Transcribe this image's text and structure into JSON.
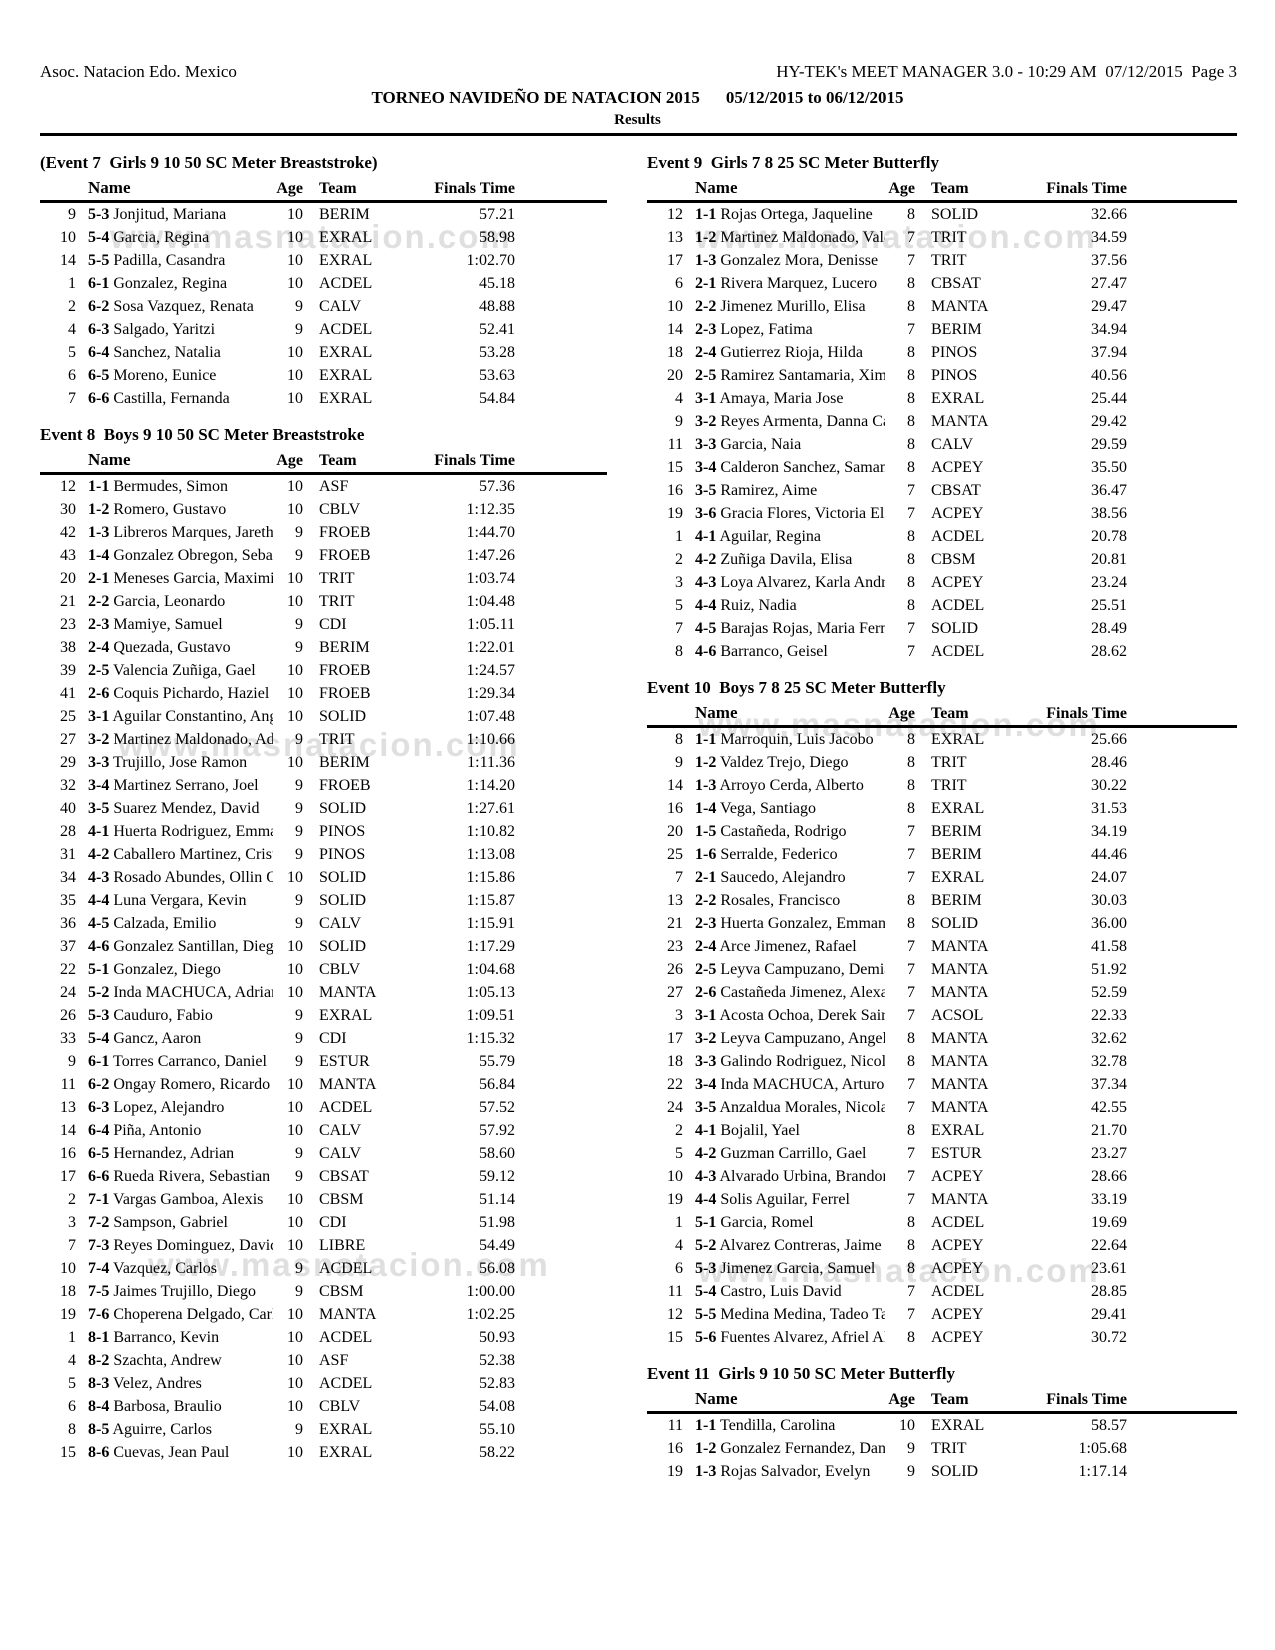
{
  "page_header": {
    "organization": "Asoc. Natacion Edo. Mexico",
    "program_info": "HY-TEK's MEET MANAGER 3.0 - 10:29 AM  07/12/2015  Page 3",
    "meet_title": "TORNEO NAVIDEÑO DE NATACION 2015",
    "meet_dates": "05/12/2015 to 06/12/2015",
    "results_label": "Results"
  },
  "column_headers": {
    "name": "Name",
    "age": "Age",
    "team": "Team",
    "finals_time": "Finals Time"
  },
  "watermark": {
    "text": "www.masnatacion.com"
  },
  "row_fields": [
    "place",
    "heat_lane",
    "name",
    "age",
    "team",
    "finals_time"
  ],
  "events": [
    {
      "id": "event-7",
      "title": "(Event 7  Girls 9 10 50 SC Meter Breaststroke)",
      "column": "left",
      "rows": [
        [
          "9",
          "5-3",
          "Jonjitud, Mariana",
          "10",
          "BERIM",
          "57.21"
        ],
        [
          "10",
          "5-4",
          "Garcia, Regina",
          "10",
          "EXRAL",
          "58.98"
        ],
        [
          "14",
          "5-5",
          "Padilla, Casandra",
          "10",
          "EXRAL",
          "1:02.70"
        ],
        [
          "1",
          "6-1",
          "Gonzalez, Regina",
          "10",
          "ACDEL",
          "45.18"
        ],
        [
          "2",
          "6-2",
          "Sosa Vazquez, Renata",
          "9",
          "CALV",
          "48.88"
        ],
        [
          "4",
          "6-3",
          "Salgado, Yaritzi",
          "9",
          "ACDEL",
          "52.41"
        ],
        [
          "5",
          "6-4",
          "Sanchez, Natalia",
          "10",
          "EXRAL",
          "53.28"
        ],
        [
          "6",
          "6-5",
          "Moreno, Eunice",
          "10",
          "EXRAL",
          "53.63"
        ],
        [
          "7",
          "6-6",
          "Castilla, Fernanda",
          "10",
          "EXRAL",
          "54.84"
        ]
      ]
    },
    {
      "id": "event-8",
      "title": "Event 8  Boys 9 10 50 SC Meter Breaststroke",
      "column": "left",
      "rows": [
        [
          "12",
          "1-1",
          "Bermudes, Simon",
          "10",
          "ASF",
          "57.36"
        ],
        [
          "30",
          "1-2",
          "Romero, Gustavo",
          "10",
          "CBLV",
          "1:12.35"
        ],
        [
          "42",
          "1-3",
          "Libreros Marques, Jareth",
          "9",
          "FROEB",
          "1:44.70"
        ],
        [
          "43",
          "1-4",
          "Gonzalez Obregon, Sebast",
          "9",
          "FROEB",
          "1:47.26"
        ],
        [
          "20",
          "2-1",
          "Meneses Garcia, Maximili",
          "10",
          "TRIT",
          "1:03.74"
        ],
        [
          "21",
          "2-2",
          "Garcia, Leonardo",
          "10",
          "TRIT",
          "1:04.48"
        ],
        [
          "23",
          "2-3",
          "Mamiye, Samuel",
          "9",
          "CDI",
          "1:05.11"
        ],
        [
          "38",
          "2-4",
          "Quezada, Gustavo",
          "9",
          "BERIM",
          "1:22.01"
        ],
        [
          "39",
          "2-5",
          "Valencia Zuñiga, Gael",
          "10",
          "FROEB",
          "1:24.57"
        ],
        [
          "41",
          "2-6",
          "Coquis Pichardo, Haziel",
          "10",
          "FROEB",
          "1:29.34"
        ],
        [
          "25",
          "3-1",
          "Aguilar Constantino, Ange",
          "10",
          "SOLID",
          "1:07.48"
        ],
        [
          "27",
          "3-2",
          "Martinez Maldonado, Adr",
          "9",
          "TRIT",
          "1:10.66"
        ],
        [
          "29",
          "3-3",
          "Trujillo, Jose Ramon",
          "10",
          "BERIM",
          "1:11.36"
        ],
        [
          "32",
          "3-4",
          "Martinez Serrano, Joel",
          "9",
          "FROEB",
          "1:14.20"
        ],
        [
          "40",
          "3-5",
          "Suarez Mendez, David",
          "9",
          "SOLID",
          "1:27.61"
        ],
        [
          "28",
          "4-1",
          "Huerta Rodriguez, Emmar",
          "9",
          "PINOS",
          "1:10.82"
        ],
        [
          "31",
          "4-2",
          "Caballero Martinez, Cristo",
          "9",
          "PINOS",
          "1:13.08"
        ],
        [
          "34",
          "4-3",
          "Rosado Abundes, Ollin Qu",
          "10",
          "SOLID",
          "1:15.86"
        ],
        [
          "35",
          "4-4",
          "Luna Vergara, Kevin",
          "9",
          "SOLID",
          "1:15.87"
        ],
        [
          "36",
          "4-5",
          "Calzada, Emilio",
          "9",
          "CALV",
          "1:15.91"
        ],
        [
          "37",
          "4-6",
          "Gonzalez Santillan, Diego",
          "10",
          "SOLID",
          "1:17.29"
        ],
        [
          "22",
          "5-1",
          "Gonzalez, Diego",
          "10",
          "CBLV",
          "1:04.68"
        ],
        [
          "24",
          "5-2",
          "Inda MACHUCA, Adrian",
          "10",
          "MANTA",
          "1:05.13"
        ],
        [
          "26",
          "5-3",
          "Cauduro, Fabio",
          "9",
          "EXRAL",
          "1:09.51"
        ],
        [
          "33",
          "5-4",
          "Gancz, Aaron",
          "9",
          "CDI",
          "1:15.32"
        ],
        [
          "9",
          "6-1",
          "Torres Carranco, Daniel",
          "9",
          "ESTUR",
          "55.79"
        ],
        [
          "11",
          "6-2",
          "Ongay Romero, Ricardo J",
          "10",
          "MANTA",
          "56.84"
        ],
        [
          "13",
          "6-3",
          "Lopez, Alejandro",
          "10",
          "ACDEL",
          "57.52"
        ],
        [
          "14",
          "6-4",
          "Piña, Antonio",
          "10",
          "CALV",
          "57.92"
        ],
        [
          "16",
          "6-5",
          "Hernandez, Adrian",
          "9",
          "CALV",
          "58.60"
        ],
        [
          "17",
          "6-6",
          "Rueda Rivera, Sebastian",
          "9",
          "CBSAT",
          "59.12"
        ],
        [
          "2",
          "7-1",
          "Vargas Gamboa, Alexis",
          "10",
          "CBSM",
          "51.14"
        ],
        [
          "3",
          "7-2",
          "Sampson, Gabriel",
          "10",
          "CDI",
          "51.98"
        ],
        [
          "7",
          "7-3",
          "Reyes Dominguez, David",
          "10",
          "LIBRE",
          "54.49"
        ],
        [
          "10",
          "7-4",
          "Vazquez, Carlos",
          "9",
          "ACDEL",
          "56.08"
        ],
        [
          "18",
          "7-5",
          "Jaimes Trujillo, Diego",
          "9",
          "CBSM",
          "1:00.00"
        ],
        [
          "19",
          "7-6",
          "Choperena Delgado, Carlo",
          "10",
          "MANTA",
          "1:02.25"
        ],
        [
          "1",
          "8-1",
          "Barranco, Kevin",
          "10",
          "ACDEL",
          "50.93"
        ],
        [
          "4",
          "8-2",
          "Szachta, Andrew",
          "10",
          "ASF",
          "52.38"
        ],
        [
          "5",
          "8-3",
          "Velez, Andres",
          "10",
          "ACDEL",
          "52.83"
        ],
        [
          "6",
          "8-4",
          "Barbosa, Braulio",
          "10",
          "CBLV",
          "54.08"
        ],
        [
          "8",
          "8-5",
          "Aguirre, Carlos",
          "9",
          "EXRAL",
          "55.10"
        ],
        [
          "15",
          "8-6",
          "Cuevas, Jean Paul",
          "10",
          "EXRAL",
          "58.22"
        ]
      ]
    },
    {
      "id": "event-9",
      "title": "Event 9  Girls 7 8 25 SC Meter Butterfly",
      "column": "right",
      "rows": [
        [
          "12",
          "1-1",
          "Rojas Ortega, Jaqueline",
          "8",
          "SOLID",
          "32.66"
        ],
        [
          "13",
          "1-2",
          "Martinez Maldonado, Vale",
          "7",
          "TRIT",
          "34.59"
        ],
        [
          "17",
          "1-3",
          "Gonzalez Mora, Denisse",
          "7",
          "TRIT",
          "37.56"
        ],
        [
          "6",
          "2-1",
          "Rivera Marquez, Lucero",
          "8",
          "CBSAT",
          "27.47"
        ],
        [
          "10",
          "2-2",
          "Jimenez Murillo, Elisa",
          "8",
          "MANTA",
          "29.47"
        ],
        [
          "14",
          "2-3",
          "Lopez, Fatima",
          "7",
          "BERIM",
          "34.94"
        ],
        [
          "18",
          "2-4",
          "Gutierrez Rioja, Hilda",
          "8",
          "PINOS",
          "37.94"
        ],
        [
          "20",
          "2-5",
          "Ramirez Santamaria, Xim",
          "8",
          "PINOS",
          "40.56"
        ],
        [
          "4",
          "3-1",
          "Amaya, Maria Jose",
          "8",
          "EXRAL",
          "25.44"
        ],
        [
          "9",
          "3-2",
          "Reyes Armenta, Danna Ca",
          "8",
          "MANTA",
          "29.42"
        ],
        [
          "11",
          "3-3",
          "Garcia, Naia",
          "8",
          "CALV",
          "29.59"
        ],
        [
          "15",
          "3-4",
          "Calderon Sanchez, Saman",
          "8",
          "ACPEY",
          "35.50"
        ],
        [
          "16",
          "3-5",
          "Ramirez, Aime",
          "7",
          "CBSAT",
          "36.47"
        ],
        [
          "19",
          "3-6",
          "Gracia Flores, Victoria Eli",
          "7",
          "ACPEY",
          "38.56"
        ],
        [
          "1",
          "4-1",
          "Aguilar, Regina",
          "8",
          "ACDEL",
          "20.78"
        ],
        [
          "2",
          "4-2",
          "Zuñiga Davila, Elisa",
          "8",
          "CBSM",
          "20.81"
        ],
        [
          "3",
          "4-3",
          "Loya Alvarez, Karla Andr",
          "8",
          "ACPEY",
          "23.24"
        ],
        [
          "5",
          "4-4",
          "Ruiz, Nadia",
          "8",
          "ACDEL",
          "25.51"
        ],
        [
          "7",
          "4-5",
          "Barajas Rojas, Maria Fern",
          "7",
          "SOLID",
          "28.49"
        ],
        [
          "8",
          "4-6",
          "Barranco, Geisel",
          "7",
          "ACDEL",
          "28.62"
        ]
      ]
    },
    {
      "id": "event-10",
      "title": "Event 10  Boys 7 8 25 SC Meter Butterfly",
      "column": "right",
      "rows": [
        [
          "8",
          "1-1",
          "Marroquin, Luis Jacobo",
          "8",
          "EXRAL",
          "25.66"
        ],
        [
          "9",
          "1-2",
          "Valdez Trejo, Diego",
          "8",
          "TRIT",
          "28.46"
        ],
        [
          "14",
          "1-3",
          "Arroyo Cerda, Alberto",
          "8",
          "TRIT",
          "30.22"
        ],
        [
          "16",
          "1-4",
          "Vega, Santiago",
          "8",
          "EXRAL",
          "31.53"
        ],
        [
          "20",
          "1-5",
          "Castañeda, Rodrigo",
          "7",
          "BERIM",
          "34.19"
        ],
        [
          "25",
          "1-6",
          "Serralde, Federico",
          "7",
          "BERIM",
          "44.46"
        ],
        [
          "7",
          "2-1",
          "Saucedo, Alejandro",
          "7",
          "EXRAL",
          "24.07"
        ],
        [
          "13",
          "2-2",
          "Rosales, Francisco",
          "8",
          "BERIM",
          "30.03"
        ],
        [
          "21",
          "2-3",
          "Huerta Gonzalez, Emman",
          "8",
          "SOLID",
          "36.00"
        ],
        [
          "23",
          "2-4",
          "Arce Jimenez, Rafael",
          "7",
          "MANTA",
          "41.58"
        ],
        [
          "26",
          "2-5",
          "Leyva Campuzano, Demia",
          "7",
          "MANTA",
          "51.92"
        ],
        [
          "27",
          "2-6",
          "Castañeda Jimenez, Alexa",
          "7",
          "MANTA",
          "52.59"
        ],
        [
          "3",
          "3-1",
          "Acosta Ochoa, Derek Sair",
          "7",
          "ACSOL",
          "22.33"
        ],
        [
          "17",
          "3-2",
          "Leyva Campuzano, Angel",
          "8",
          "MANTA",
          "32.62"
        ],
        [
          "18",
          "3-3",
          "Galindo Rodriguez, Nicol",
          "8",
          "MANTA",
          "32.78"
        ],
        [
          "22",
          "3-4",
          "Inda MACHUCA, Arturo",
          "7",
          "MANTA",
          "37.34"
        ],
        [
          "24",
          "3-5",
          "Anzaldua Morales, Nicola",
          "7",
          "MANTA",
          "42.55"
        ],
        [
          "2",
          "4-1",
          "Bojalil, Yael",
          "8",
          "EXRAL",
          "21.70"
        ],
        [
          "5",
          "4-2",
          "Guzman Carrillo, Gael",
          "7",
          "ESTUR",
          "23.27"
        ],
        [
          "10",
          "4-3",
          "Alvarado Urbina, Brandor",
          "7",
          "ACPEY",
          "28.66"
        ],
        [
          "19",
          "4-4",
          "Solis Aguilar, Ferrel",
          "7",
          "MANTA",
          "33.19"
        ],
        [
          "1",
          "5-1",
          "Garcia, Romel",
          "8",
          "ACDEL",
          "19.69"
        ],
        [
          "4",
          "5-2",
          "Alvarez Contreras, Jaime",
          "8",
          "ACPEY",
          "22.64"
        ],
        [
          "6",
          "5-3",
          "Jimenez Garcia, Samuel",
          "8",
          "ACPEY",
          "23.61"
        ],
        [
          "11",
          "5-4",
          "Castro, Luis David",
          "7",
          "ACDEL",
          "28.85"
        ],
        [
          "12",
          "5-5",
          "Medina Medina, Tadeo Ta",
          "7",
          "ACPEY",
          "29.41"
        ],
        [
          "15",
          "5-6",
          "Fuentes Alvarez, Afriel Al",
          "8",
          "ACPEY",
          "30.72"
        ]
      ]
    },
    {
      "id": "event-11",
      "title": "Event 11  Girls 9 10 50 SC Meter Butterfly",
      "column": "right",
      "rows": [
        [
          "11",
          "1-1",
          "Tendilla, Carolina",
          "10",
          "EXRAL",
          "58.57"
        ],
        [
          "16",
          "1-2",
          "Gonzalez Fernandez, Dan",
          "9",
          "TRIT",
          "1:05.68"
        ],
        [
          "19",
          "1-3",
          "Rojas Salvador, Evelyn",
          "9",
          "SOLID",
          "1:17.14"
        ]
      ]
    }
  ]
}
